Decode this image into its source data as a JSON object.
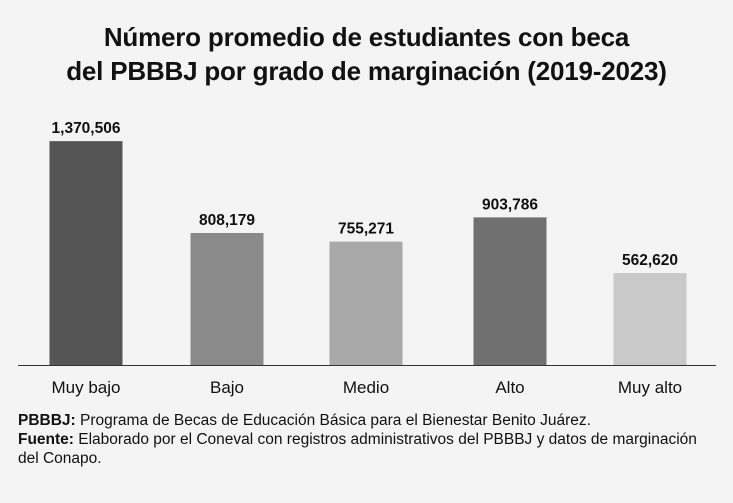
{
  "chart_data": {
    "type": "bar",
    "title_lines": [
      "Número promedio de estudiantes con beca",
      "del PBBBJ por grado de marginación (2019-2023)"
    ],
    "categories": [
      "Muy bajo",
      "Bajo",
      "Medio",
      "Alto",
      "Muy alto"
    ],
    "values": [
      1370506,
      808179,
      755271,
      903786,
      562620
    ],
    "value_labels": [
      "1,370,506",
      "808,179",
      "755,271",
      "903,786",
      "562,620"
    ],
    "colors": [
      "#555555",
      "#8a8a8a",
      "#a9a9a9",
      "#707070",
      "#c9c9c9"
    ],
    "ylim": [
      0,
      1500000
    ],
    "grid": false,
    "xlabel": "",
    "ylabel": ""
  },
  "notes": {
    "def_label": "PBBBJ:",
    "def_text": " Programa de Becas de Educación Básica para el Bienestar Benito Juárez.",
    "source_label": "Fuente:",
    "source_text": " Elaborado por el Coneval con registros administrativos del PBBBJ y datos de marginación del Conapo."
  }
}
